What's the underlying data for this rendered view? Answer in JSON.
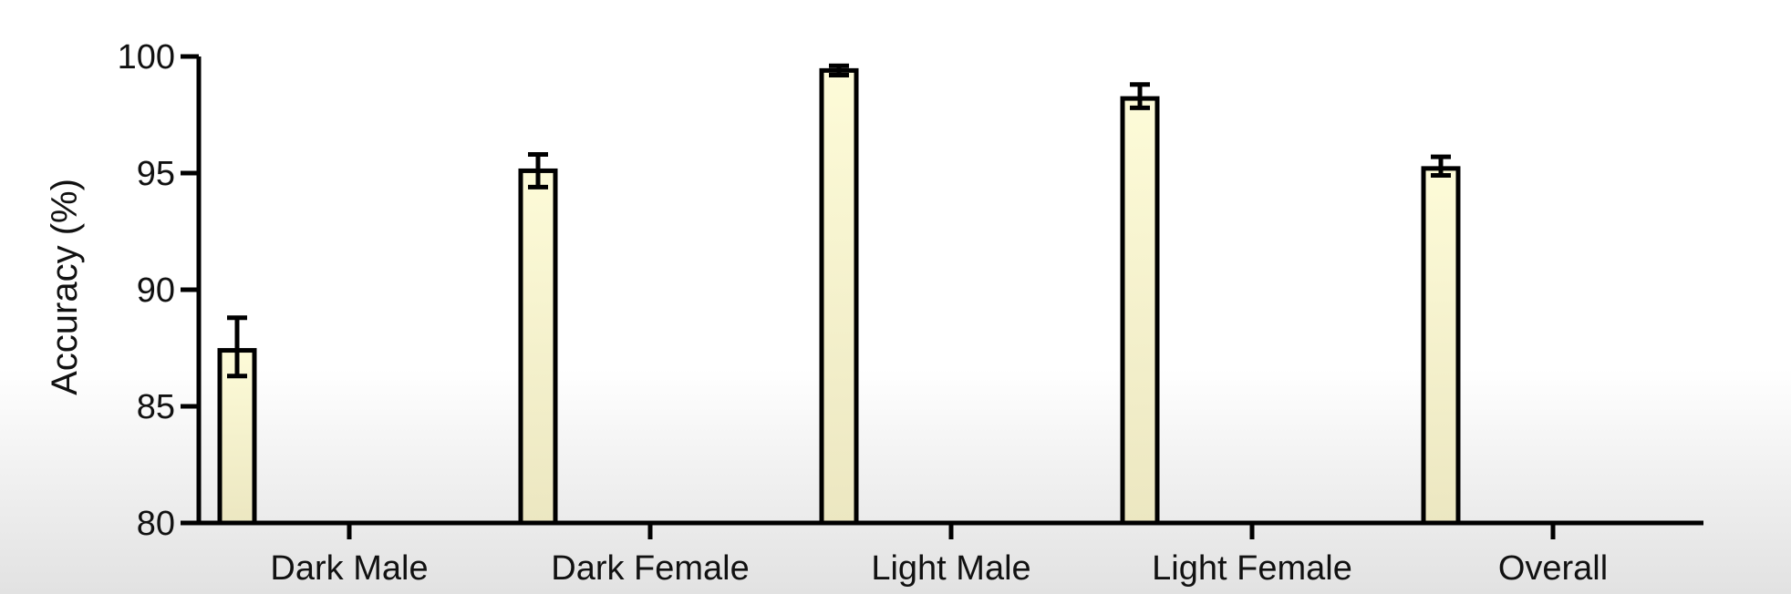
{
  "chart_data": {
    "type": "bar",
    "title": "",
    "xlabel": "",
    "ylabel": "Accuracy (%)",
    "ylim": [
      80,
      100
    ],
    "yticks": [
      80,
      85,
      90,
      95,
      100
    ],
    "grid": false,
    "legend": "none",
    "categories": [
      "Dark Male",
      "Dark Female",
      "Light Male",
      "Light Female",
      "Overall"
    ],
    "values": [
      87.4,
      95.1,
      99.4,
      98.2,
      95.2
    ],
    "error_low": [
      86.3,
      94.4,
      99.2,
      97.8,
      94.9
    ],
    "error_high": [
      88.8,
      95.8,
      99.6,
      98.8,
      95.7
    ],
    "bar_color": "#fbf8cf",
    "bar_edge_color": "#000000"
  }
}
